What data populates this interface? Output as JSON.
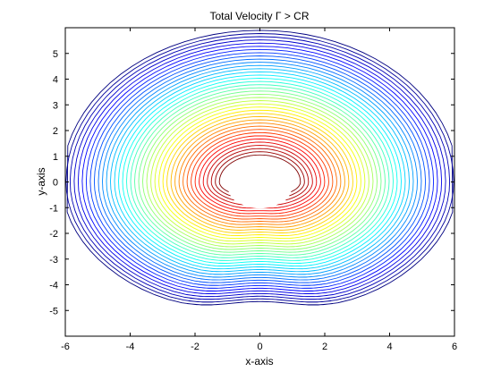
{
  "chart_data": {
    "type": "contour",
    "title": "Total Velocity Γ > CR",
    "xlabel": "x-axis",
    "ylabel": "y-axis",
    "xlim": [
      -6,
      6
    ],
    "ylim": [
      -6,
      6
    ],
    "xticks": [
      -6,
      -4,
      -2,
      0,
      2,
      4,
      6
    ],
    "yticks": [
      -5,
      -4,
      -3,
      -2,
      -1,
      0,
      1,
      2,
      3,
      4,
      5
    ],
    "grid": false,
    "legend": "none",
    "colormap": "jet",
    "cylinder_radius": 1,
    "level_range": [
      0.62,
      1.9
    ],
    "level_count": 40
  }
}
